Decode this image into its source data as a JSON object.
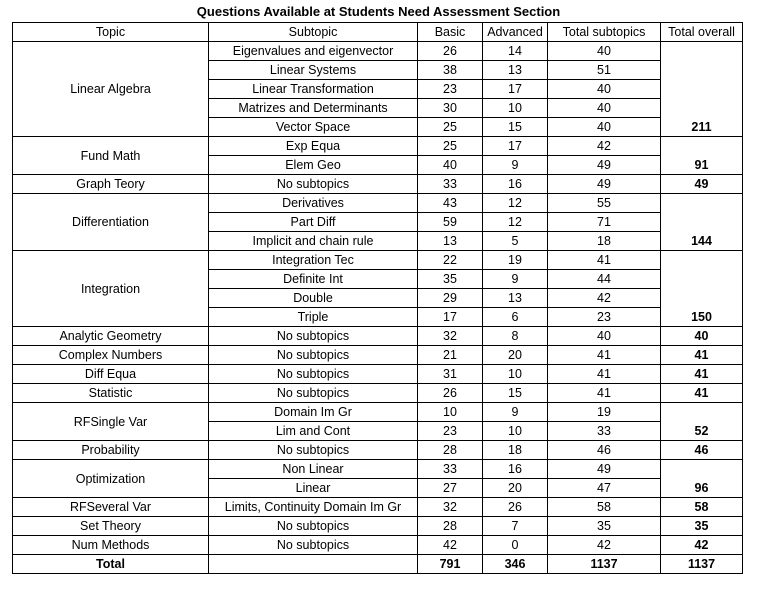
{
  "title": "Questions Available at Students Need Assessment Section",
  "headers": [
    "Topic",
    "Subtopic",
    "Basic",
    "Advanced",
    "Total subtopics",
    "Total overall"
  ],
  "groups": [
    {
      "topic": "Linear Algebra",
      "total": "211",
      "rows": [
        {
          "subtopic": "Eigenvalues and eigenvector",
          "basic": "26",
          "advanced": "14",
          "total": "40"
        },
        {
          "subtopic": "Linear Systems",
          "basic": "38",
          "advanced": "13",
          "total": "51"
        },
        {
          "subtopic": "Linear Transformation",
          "basic": "23",
          "advanced": "17",
          "total": "40"
        },
        {
          "subtopic": "Matrizes and Determinants",
          "basic": "30",
          "advanced": "10",
          "total": "40"
        },
        {
          "subtopic": "Vector Space",
          "basic": "25",
          "advanced": "15",
          "total": "40"
        }
      ]
    },
    {
      "topic": "Fund Math",
      "total": "91",
      "rows": [
        {
          "subtopic": "Exp Equa",
          "basic": "25",
          "advanced": "17",
          "total": "42"
        },
        {
          "subtopic": "Elem Geo",
          "basic": "40",
          "advanced": "9",
          "total": "49"
        }
      ]
    },
    {
      "topic": "Graph Teory",
      "total": "49",
      "rows": [
        {
          "subtopic": "No subtopics",
          "basic": "33",
          "advanced": "16",
          "total": "49"
        }
      ]
    },
    {
      "topic": "Differentiation",
      "total": "144",
      "rows": [
        {
          "subtopic": "Derivatives",
          "basic": "43",
          "advanced": "12",
          "total": "55"
        },
        {
          "subtopic": "Part Diff",
          "basic": "59",
          "advanced": "12",
          "total": "71"
        },
        {
          "subtopic": "Implicit and chain rule",
          "basic": "13",
          "advanced": "5",
          "total": "18"
        }
      ]
    },
    {
      "topic": "Integration",
      "total": "150",
      "rows": [
        {
          "subtopic": "Integration Tec",
          "basic": "22",
          "advanced": "19",
          "total": "41"
        },
        {
          "subtopic": "Definite Int",
          "basic": "35",
          "advanced": "9",
          "total": "44"
        },
        {
          "subtopic": "Double",
          "basic": "29",
          "advanced": "13",
          "total": "42"
        },
        {
          "subtopic": "Triple",
          "basic": "17",
          "advanced": "6",
          "total": "23"
        }
      ]
    },
    {
      "topic": "Analytic Geometry",
      "total": "40",
      "rows": [
        {
          "subtopic": "No subtopics",
          "basic": "32",
          "advanced": "8",
          "total": "40"
        }
      ]
    },
    {
      "topic": "Complex Numbers",
      "total": "41",
      "rows": [
        {
          "subtopic": "No subtopics",
          "basic": "21",
          "advanced": "20",
          "total": "41"
        }
      ]
    },
    {
      "topic": "Diff Equa",
      "total": "41",
      "rows": [
        {
          "subtopic": "No subtopics",
          "basic": "31",
          "advanced": "10",
          "total": "41"
        }
      ]
    },
    {
      "topic": "Statistic",
      "total": "41",
      "rows": [
        {
          "subtopic": "No subtopics",
          "basic": "26",
          "advanced": "15",
          "total": "41"
        }
      ]
    },
    {
      "topic": "RFSingle Var",
      "total": "52",
      "rows": [
        {
          "subtopic": "Domain Im Gr",
          "basic": "10",
          "advanced": "9",
          "total": "19"
        },
        {
          "subtopic": "Lim and Cont",
          "basic": "23",
          "advanced": "10",
          "total": "33"
        }
      ]
    },
    {
      "topic": "Probability",
      "total": "46",
      "rows": [
        {
          "subtopic": "No subtopics",
          "basic": "28",
          "advanced": "18",
          "total": "46"
        }
      ]
    },
    {
      "topic": "Optimization",
      "total": "96",
      "rows": [
        {
          "subtopic": "Non Linear",
          "basic": "33",
          "advanced": "16",
          "total": "49"
        },
        {
          "subtopic": "Linear",
          "basic": "27",
          "advanced": "20",
          "total": "47"
        }
      ]
    },
    {
      "topic": "RFSeveral Var",
      "total": "58",
      "rows": [
        {
          "subtopic": "Limits, Continuity Domain Im Gr",
          "basic": "32",
          "advanced": "26",
          "total": "58"
        }
      ]
    },
    {
      "topic": "Set Theory",
      "total": "35",
      "rows": [
        {
          "subtopic": "No subtopics",
          "basic": "28",
          "advanced": "7",
          "total": "35"
        }
      ]
    },
    {
      "topic": "Num Methods",
      "total": "42",
      "rows": [
        {
          "subtopic": "No subtopics",
          "basic": "42",
          "advanced": "0",
          "total": "42"
        }
      ]
    }
  ],
  "totals": {
    "label": "Total",
    "basic": "791",
    "advanced": "346",
    "subtopics": "1137",
    "overall": "1137"
  }
}
